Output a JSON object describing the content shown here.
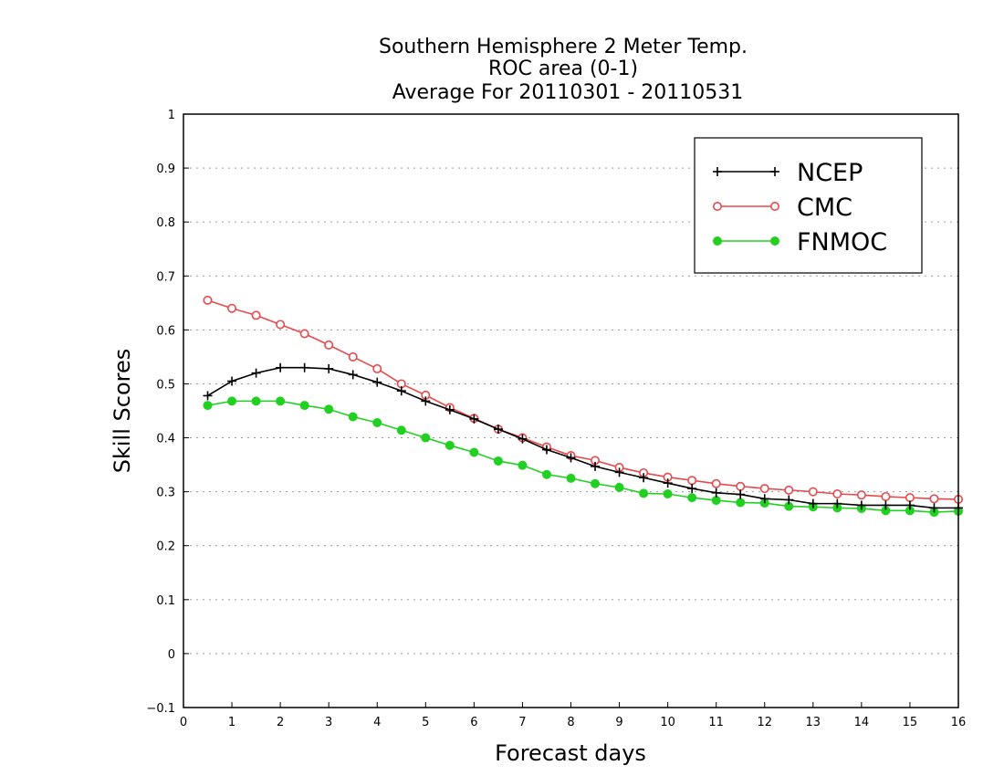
{
  "chart_data": {
    "type": "line",
    "title": [
      "Southern Hemisphere 2 Meter Temp.",
      "ROC area (0-1)",
      "Average For 20110301 - 20110531"
    ],
    "xlabel": "Forecast days",
    "ylabel": "Skill Scores",
    "xlim": [
      0,
      16
    ],
    "ylim": [
      -0.1,
      1
    ],
    "x_ticks": [
      "0",
      "1",
      "2",
      "3",
      "4",
      "5",
      "6",
      "7",
      "8",
      "9",
      "10",
      "11",
      "12",
      "13",
      "14",
      "15",
      "16"
    ],
    "y_ticks": [
      "-0.1",
      "0",
      "0.1",
      "0.2",
      "0.3",
      "0.4",
      "0.5",
      "0.6",
      "0.7",
      "0.8",
      "0.9",
      "1"
    ],
    "grid": "horizontal dotted",
    "legend_position": "top-right",
    "x": [
      0.5,
      1,
      1.5,
      2,
      2.5,
      3,
      3.5,
      4,
      4.5,
      5,
      5.5,
      6,
      6.5,
      7,
      7.5,
      8,
      8.5,
      9,
      9.5,
      10,
      10.5,
      11,
      11.5,
      12,
      12.5,
      13,
      13.5,
      14,
      14.5,
      15,
      15.5,
      16
    ],
    "series": [
      {
        "name": "NCEP",
        "color": "#000000",
        "marker": "plus",
        "values": [
          0.478,
          0.505,
          0.52,
          0.53,
          0.53,
          0.528,
          0.517,
          0.503,
          0.487,
          0.468,
          0.452,
          0.435,
          0.416,
          0.398,
          0.378,
          0.363,
          0.347,
          0.336,
          0.326,
          0.316,
          0.306,
          0.298,
          0.295,
          0.287,
          0.285,
          0.278,
          0.278,
          0.275,
          0.275,
          0.275,
          0.27,
          0.27
        ]
      },
      {
        "name": "CMC",
        "color": "#e8494d",
        "marker": "open-circle",
        "values": [
          0.655,
          0.64,
          0.627,
          0.61,
          0.593,
          0.572,
          0.55,
          0.528,
          0.5,
          0.479,
          0.456,
          0.436,
          0.416,
          0.4,
          0.383,
          0.367,
          0.358,
          0.345,
          0.335,
          0.327,
          0.321,
          0.315,
          0.31,
          0.306,
          0.303,
          0.3,
          0.296,
          0.294,
          0.291,
          0.289,
          0.287,
          0.286
        ]
      },
      {
        "name": "FNMOC",
        "color": "#22d022",
        "marker": "filled-circle",
        "values": [
          0.46,
          0.468,
          0.468,
          0.468,
          0.46,
          0.453,
          0.439,
          0.428,
          0.414,
          0.4,
          0.386,
          0.373,
          0.357,
          0.349,
          0.332,
          0.325,
          0.315,
          0.308,
          0.297,
          0.296,
          0.289,
          0.284,
          0.28,
          0.279,
          0.273,
          0.272,
          0.27,
          0.269,
          0.265,
          0.265,
          0.262,
          0.264
        ]
      }
    ]
  }
}
